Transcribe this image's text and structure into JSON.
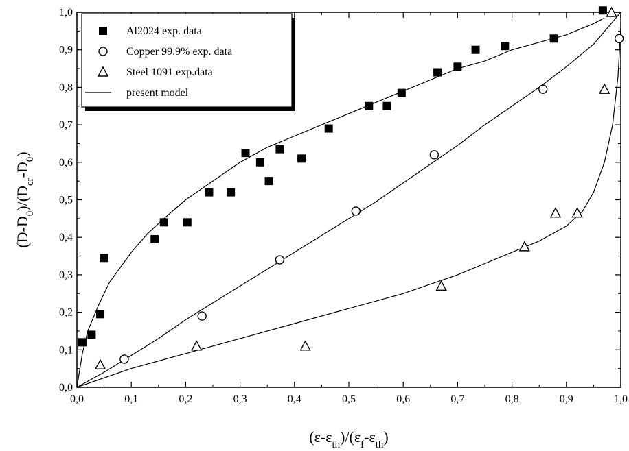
{
  "chart_data": {
    "type": "scatter",
    "xlabel": "(ε-ε_th)/(ε_f-ε_th)",
    "ylabel": "(D-D_0)/(D_cr-D_0)",
    "xlim": [
      0,
      1
    ],
    "ylim": [
      0,
      1
    ],
    "xticks": [
      0,
      0.1,
      0.2,
      0.3,
      0.4,
      0.5,
      0.6,
      0.7,
      0.8,
      0.9,
      1.0
    ],
    "yticks": [
      0,
      0.1,
      0.2,
      0.3,
      0.4,
      0.5,
      0.6,
      0.7,
      0.8,
      0.9,
      1.0
    ],
    "xtick_labels": [
      "0,0",
      "0,1",
      "0,2",
      "0,3",
      "0,4",
      "0,5",
      "0,6",
      "0,7",
      "0,8",
      "0,9",
      "1,0"
    ],
    "ytick_labels": [
      "0,0",
      "0,1",
      "0,2",
      "0,3",
      "0,4",
      "0,5",
      "0,6",
      "0,7",
      "0,8",
      "0,9",
      "1,0"
    ],
    "grid": false,
    "legend_position": "top-left",
    "series": [
      {
        "name": "Al2024 exp. data",
        "marker": "filled-square",
        "points": [
          [
            0.01,
            0.12
          ],
          [
            0.027,
            0.14
          ],
          [
            0.043,
            0.195
          ],
          [
            0.05,
            0.345
          ],
          [
            0.143,
            0.395
          ],
          [
            0.16,
            0.44
          ],
          [
            0.203,
            0.44
          ],
          [
            0.243,
            0.52
          ],
          [
            0.283,
            0.52
          ],
          [
            0.31,
            0.625
          ],
          [
            0.337,
            0.6
          ],
          [
            0.353,
            0.55
          ],
          [
            0.373,
            0.635
          ],
          [
            0.413,
            0.61
          ],
          [
            0.463,
            0.69
          ],
          [
            0.537,
            0.75
          ],
          [
            0.57,
            0.75
          ],
          [
            0.597,
            0.785
          ],
          [
            0.663,
            0.84
          ],
          [
            0.7,
            0.855
          ],
          [
            0.733,
            0.9
          ],
          [
            0.787,
            0.91
          ],
          [
            0.877,
            0.93
          ],
          [
            0.967,
            1.005
          ]
        ]
      },
      {
        "name": "Copper 99.9% exp. data",
        "marker": "open-circle",
        "points": [
          [
            0.087,
            0.075
          ],
          [
            0.23,
            0.19
          ],
          [
            0.373,
            0.34
          ],
          [
            0.513,
            0.47
          ],
          [
            0.657,
            0.62
          ],
          [
            0.857,
            0.795
          ],
          [
            0.997,
            0.93
          ]
        ]
      },
      {
        "name": "Steel 1091 exp.data",
        "marker": "open-triangle",
        "points": [
          [
            0.043,
            0.06
          ],
          [
            0.22,
            0.11
          ],
          [
            0.42,
            0.11
          ],
          [
            0.67,
            0.27
          ],
          [
            0.823,
            0.375
          ],
          [
            0.88,
            0.465
          ],
          [
            0.92,
            0.465
          ],
          [
            0.97,
            0.795
          ],
          [
            0.983,
            1.0
          ]
        ]
      },
      {
        "name": "present model",
        "marker": "line",
        "curves": [
          [
            [
              0,
              0
            ],
            [
              0.01,
              0.09
            ],
            [
              0.02,
              0.15
            ],
            [
              0.04,
              0.22
            ],
            [
              0.06,
              0.28
            ],
            [
              0.08,
              0.32
            ],
            [
              0.1,
              0.36
            ],
            [
              0.13,
              0.41
            ],
            [
              0.16,
              0.45
            ],
            [
              0.2,
              0.5
            ],
            [
              0.25,
              0.55
            ],
            [
              0.3,
              0.6
            ],
            [
              0.35,
              0.64
            ],
            [
              0.4,
              0.67
            ],
            [
              0.45,
              0.7
            ],
            [
              0.5,
              0.73
            ],
            [
              0.55,
              0.76
            ],
            [
              0.6,
              0.79
            ],
            [
              0.65,
              0.82
            ],
            [
              0.7,
              0.85
            ],
            [
              0.75,
              0.87
            ],
            [
              0.8,
              0.9
            ],
            [
              0.85,
              0.92
            ],
            [
              0.9,
              0.94
            ],
            [
              0.95,
              0.97
            ],
            [
              0.97,
              0.985
            ]
          ],
          [
            [
              0,
              0
            ],
            [
              0.05,
              0.04
            ],
            [
              0.1,
              0.085
            ],
            [
              0.15,
              0.13
            ],
            [
              0.2,
              0.18
            ],
            [
              0.25,
              0.225
            ],
            [
              0.3,
              0.27
            ],
            [
              0.35,
              0.315
            ],
            [
              0.4,
              0.36
            ],
            [
              0.45,
              0.405
            ],
            [
              0.5,
              0.45
            ],
            [
              0.55,
              0.495
            ],
            [
              0.6,
              0.545
            ],
            [
              0.65,
              0.595
            ],
            [
              0.7,
              0.645
            ],
            [
              0.75,
              0.7
            ],
            [
              0.8,
              0.75
            ],
            [
              0.85,
              0.8
            ],
            [
              0.9,
              0.855
            ],
            [
              0.95,
              0.915
            ],
            [
              1.0,
              1.0
            ]
          ],
          [
            [
              0,
              0
            ],
            [
              0.1,
              0.05
            ],
            [
              0.2,
              0.09
            ],
            [
              0.3,
              0.13
            ],
            [
              0.4,
              0.17
            ],
            [
              0.5,
              0.21
            ],
            [
              0.6,
              0.25
            ],
            [
              0.7,
              0.3
            ],
            [
              0.75,
              0.33
            ],
            [
              0.8,
              0.36
            ],
            [
              0.85,
              0.39
            ],
            [
              0.9,
              0.43
            ],
            [
              0.93,
              0.47
            ],
            [
              0.95,
              0.52
            ],
            [
              0.97,
              0.6
            ],
            [
              0.985,
              0.7
            ],
            [
              0.995,
              0.83
            ],
            [
              1.0,
              0.96
            ]
          ]
        ]
      }
    ]
  }
}
